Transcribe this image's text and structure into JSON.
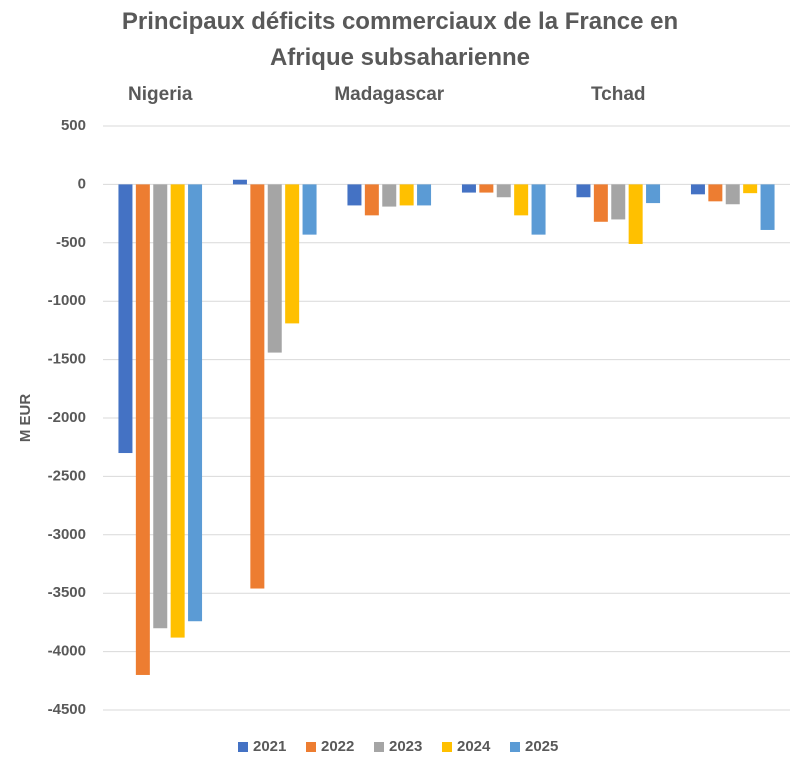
{
  "chart_data": {
    "type": "bar",
    "title": "Principaux déficits commerciaux de la France en Afrique subsaharienne",
    "y_label": "M EUR",
    "categories": [
      "Nigeria",
      null,
      "Madagascar",
      null,
      "Tchad",
      null
    ],
    "series": [
      {
        "name": "2021",
        "color": "#4472c4",
        "values": [
          -2300,
          40,
          -180,
          -70,
          -110,
          -85
        ]
      },
      {
        "name": "2022",
        "color": "#ed7d31",
        "values": [
          -4200,
          -3460,
          -265,
          -70,
          -320,
          -145
        ]
      },
      {
        "name": "2023",
        "color": "#a5a5a5",
        "values": [
          -3800,
          -1440,
          -190,
          -110,
          -300,
          -170
        ]
      },
      {
        "name": "2024",
        "color": "#ffc000",
        "values": [
          -3880,
          -1190,
          -180,
          -265,
          -510,
          -75
        ]
      },
      {
        "name": "2025",
        "color": "#5b9bd5",
        "values": [
          -3740,
          -430,
          -180,
          -430,
          -160,
          -390
        ]
      }
    ],
    "ylim": [
      -4500,
      500
    ],
    "yticks": [
      -4500,
      -4000,
      -3500,
      -3000,
      -2500,
      -2000,
      -1500,
      -1000,
      -500,
      0,
      500
    ],
    "grid": true,
    "legend": "bottom"
  }
}
